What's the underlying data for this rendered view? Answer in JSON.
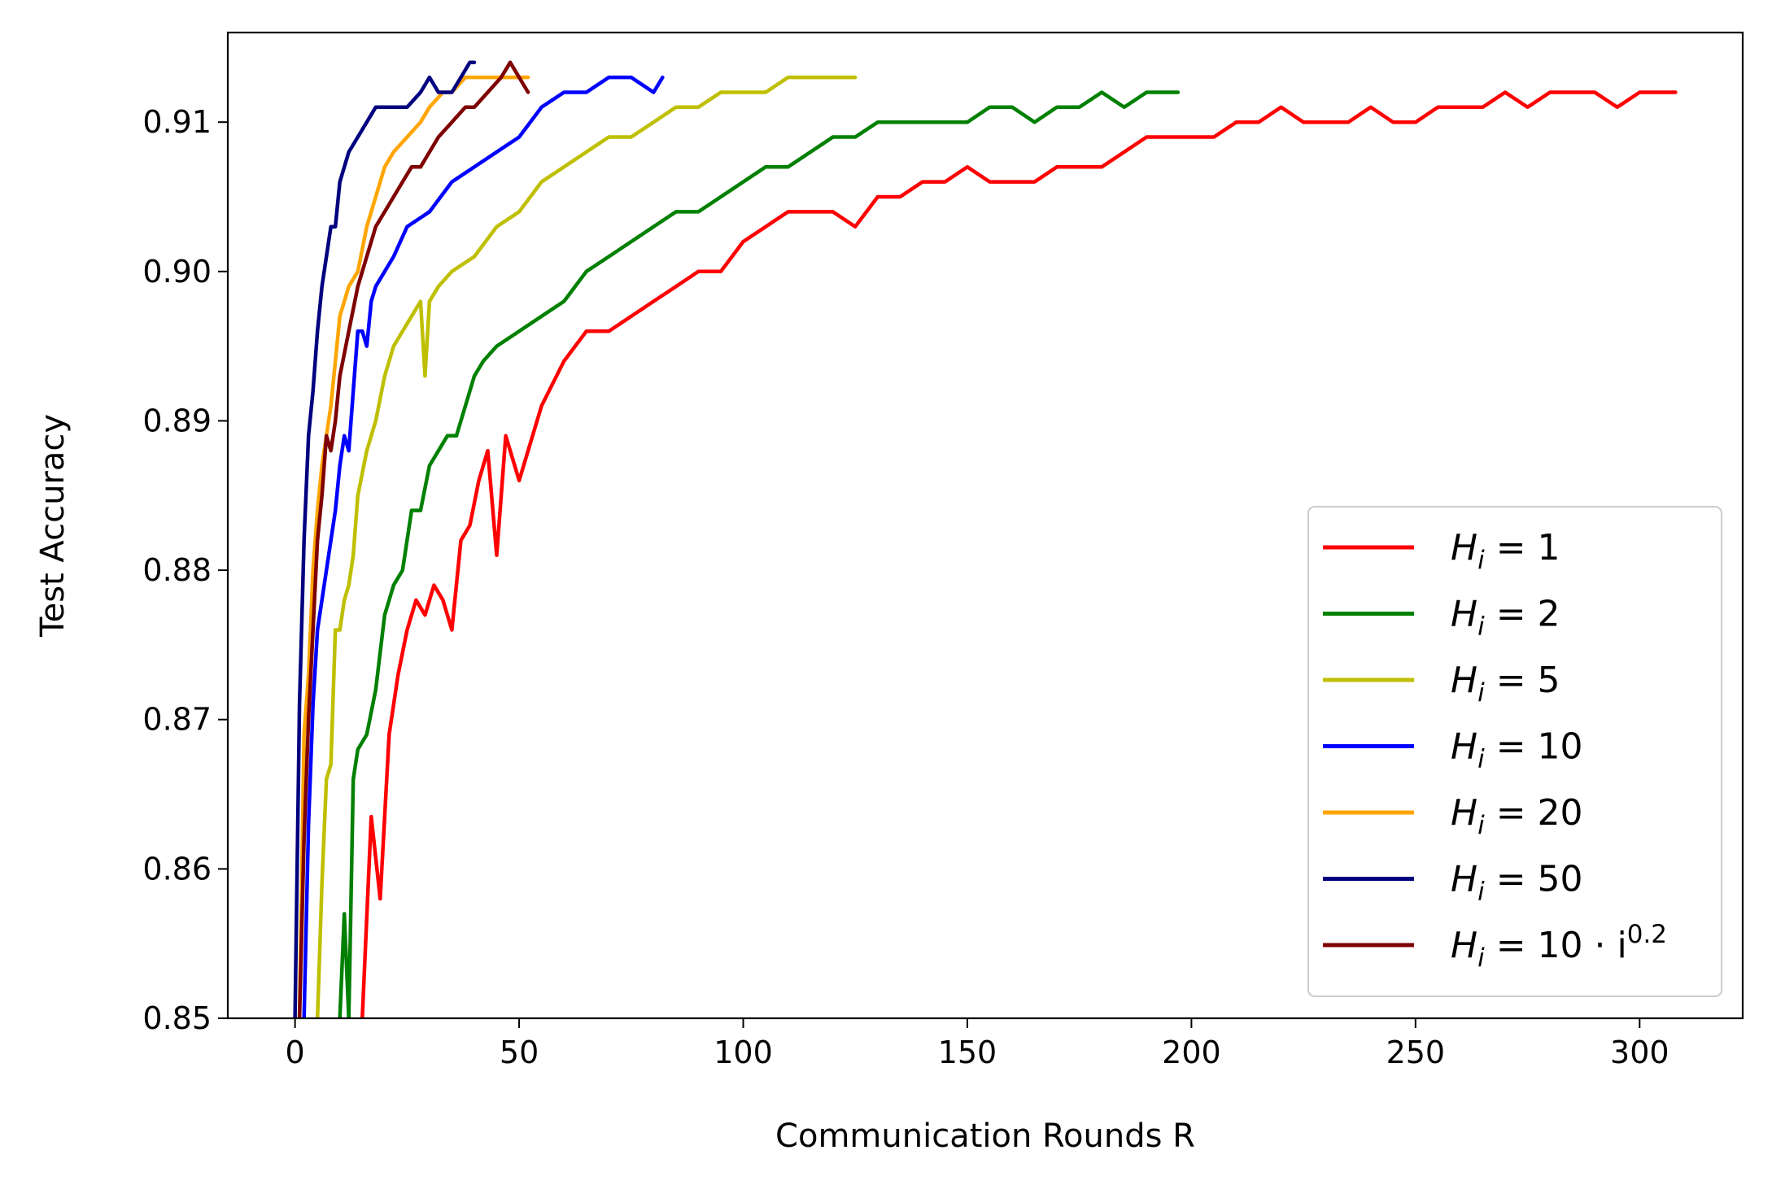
{
  "chart_data": {
    "type": "line",
    "xlabel": "Communication Rounds R",
    "ylabel": "Test Accuracy",
    "xlim": [
      -15,
      323
    ],
    "ylim": [
      0.85,
      0.916
    ],
    "x_ticks": [
      0,
      50,
      100,
      150,
      200,
      250,
      300
    ],
    "x_tick_labels": [
      "0",
      "50",
      "100",
      "150",
      "200",
      "250",
      "300"
    ],
    "y_ticks": [
      0.85,
      0.86,
      0.87,
      0.88,
      0.89,
      0.9,
      0.91
    ],
    "y_tick_labels": [
      "0.85",
      "0.86",
      "0.87",
      "0.88",
      "0.89",
      "0.90",
      "0.91"
    ],
    "grid": false,
    "legend_position": "lower-right",
    "series": [
      {
        "name": "H_i = 1",
        "label_main": "H",
        "label_sub": "i",
        "label_rest": " = 1",
        "label_sup": "",
        "color": "#ff0000",
        "x": [
          15,
          17,
          19,
          21,
          23,
          25,
          27,
          29,
          31,
          33,
          35,
          37,
          39,
          41,
          43,
          45,
          47,
          50,
          55,
          60,
          65,
          70,
          75,
          80,
          85,
          90,
          95,
          100,
          105,
          110,
          115,
          120,
          125,
          130,
          135,
          140,
          145,
          150,
          155,
          160,
          165,
          170,
          175,
          180,
          185,
          190,
          195,
          200,
          205,
          210,
          215,
          220,
          225,
          230,
          235,
          240,
          245,
          250,
          255,
          260,
          265,
          270,
          275,
          280,
          285,
          290,
          295,
          300,
          305,
          308
        ],
        "y": [
          0.85,
          0.8635,
          0.858,
          0.869,
          0.873,
          0.876,
          0.878,
          0.877,
          0.879,
          0.878,
          0.876,
          0.882,
          0.883,
          0.886,
          0.888,
          0.881,
          0.889,
          0.886,
          0.891,
          0.894,
          0.896,
          0.896,
          0.897,
          0.898,
          0.899,
          0.9,
          0.9,
          0.902,
          0.903,
          0.904,
          0.904,
          0.904,
          0.903,
          0.905,
          0.905,
          0.906,
          0.906,
          0.907,
          0.906,
          0.906,
          0.906,
          0.907,
          0.907,
          0.907,
          0.908,
          0.909,
          0.909,
          0.909,
          0.909,
          0.91,
          0.91,
          0.911,
          0.91,
          0.91,
          0.91,
          0.911,
          0.91,
          0.91,
          0.911,
          0.911,
          0.911,
          0.912,
          0.911,
          0.912,
          0.912,
          0.912,
          0.911,
          0.912,
          0.912,
          0.912
        ]
      },
      {
        "name": "H_i = 2",
        "label_main": "H",
        "label_sub": "i",
        "label_rest": " = 2",
        "label_sup": "",
        "color": "#008000",
        "x": [
          10,
          11,
          12,
          13,
          14,
          16,
          18,
          20,
          22,
          24,
          26,
          28,
          30,
          32,
          34,
          36,
          38,
          40,
          42,
          45,
          50,
          55,
          60,
          65,
          70,
          75,
          80,
          85,
          90,
          95,
          100,
          105,
          110,
          115,
          120,
          125,
          130,
          135,
          140,
          145,
          150,
          155,
          160,
          165,
          170,
          175,
          180,
          185,
          190,
          195,
          197
        ],
        "y": [
          0.85,
          0.857,
          0.85,
          0.866,
          0.868,
          0.869,
          0.872,
          0.877,
          0.879,
          0.88,
          0.884,
          0.884,
          0.887,
          0.888,
          0.889,
          0.889,
          0.891,
          0.893,
          0.894,
          0.895,
          0.896,
          0.897,
          0.898,
          0.9,
          0.901,
          0.902,
          0.903,
          0.904,
          0.904,
          0.905,
          0.906,
          0.907,
          0.907,
          0.908,
          0.909,
          0.909,
          0.91,
          0.91,
          0.91,
          0.91,
          0.91,
          0.911,
          0.911,
          0.91,
          0.911,
          0.911,
          0.912,
          0.911,
          0.912,
          0.912,
          0.912
        ]
      },
      {
        "name": "H_i = 5",
        "label_main": "H",
        "label_sub": "i",
        "label_rest": " = 5",
        "label_sup": "",
        "color": "#bfbf00",
        "x": [
          5,
          6,
          7,
          8,
          9,
          10,
          11,
          12,
          13,
          14,
          16,
          18,
          20,
          22,
          24,
          26,
          28,
          29,
          30,
          32,
          35,
          40,
          45,
          50,
          55,
          60,
          65,
          70,
          75,
          80,
          85,
          90,
          95,
          100,
          105,
          110,
          115,
          120,
          125
        ],
        "y": [
          0.85,
          0.859,
          0.866,
          0.867,
          0.876,
          0.876,
          0.878,
          0.879,
          0.881,
          0.885,
          0.888,
          0.89,
          0.893,
          0.895,
          0.896,
          0.897,
          0.898,
          0.893,
          0.898,
          0.899,
          0.9,
          0.901,
          0.903,
          0.904,
          0.906,
          0.907,
          0.908,
          0.909,
          0.909,
          0.91,
          0.911,
          0.911,
          0.912,
          0.912,
          0.912,
          0.913,
          0.913,
          0.913,
          0.913
        ]
      },
      {
        "name": "H_i = 10",
        "label_main": "H",
        "label_sub": "i",
        "label_rest": " = 10",
        "label_sup": "",
        "color": "#0000ff",
        "x": [
          2,
          3,
          4,
          5,
          6,
          7,
          8,
          9,
          10,
          11,
          12,
          13,
          14,
          15,
          16,
          17,
          18,
          20,
          22,
          25,
          30,
          35,
          40,
          45,
          50,
          55,
          60,
          65,
          70,
          75,
          80,
          82
        ],
        "y": [
          0.85,
          0.863,
          0.871,
          0.876,
          0.878,
          0.88,
          0.882,
          0.884,
          0.887,
          0.889,
          0.888,
          0.892,
          0.896,
          0.896,
          0.895,
          0.898,
          0.899,
          0.9,
          0.901,
          0.903,
          0.904,
          0.906,
          0.907,
          0.908,
          0.909,
          0.911,
          0.912,
          0.912,
          0.913,
          0.913,
          0.912,
          0.913
        ]
      },
      {
        "name": "H_i = 20",
        "label_main": "H",
        "label_sub": "i",
        "label_rest": " = 20",
        "label_sup": "",
        "color": "#ffa500",
        "x": [
          1,
          2,
          3,
          4,
          5,
          6,
          7,
          8,
          9,
          10,
          12,
          14,
          16,
          18,
          20,
          22,
          25,
          28,
          30,
          33,
          35,
          38,
          40,
          43,
          45,
          48,
          50,
          52
        ],
        "y": [
          0.85,
          0.869,
          0.873,
          0.88,
          0.884,
          0.887,
          0.889,
          0.891,
          0.894,
          0.897,
          0.899,
          0.9,
          0.903,
          0.905,
          0.907,
          0.908,
          0.909,
          0.91,
          0.911,
          0.912,
          0.912,
          0.913,
          0.913,
          0.913,
          0.913,
          0.913,
          0.913,
          0.913
        ]
      },
      {
        "name": "H_i = 50",
        "label_main": "H",
        "label_sub": "i",
        "label_rest": " = 50",
        "label_sup": "",
        "color": "#00007f",
        "x": [
          0,
          1,
          2,
          3,
          4,
          5,
          6,
          7,
          8,
          9,
          10,
          12,
          14,
          16,
          18,
          20,
          22,
          25,
          28,
          30,
          32,
          35,
          37,
          39,
          40
        ],
        "y": [
          0.85,
          0.871,
          0.882,
          0.889,
          0.892,
          0.896,
          0.899,
          0.901,
          0.903,
          0.903,
          0.906,
          0.908,
          0.909,
          0.91,
          0.911,
          0.911,
          0.911,
          0.911,
          0.912,
          0.913,
          0.912,
          0.912,
          0.913,
          0.914,
          0.914
        ]
      },
      {
        "name": "H_i = 10 · i^0.2",
        "label_main": "H",
        "label_sub": "i",
        "label_rest": " = 10 · i",
        "label_sup": "0.2",
        "color": "#7f0000",
        "x": [
          1,
          2,
          3,
          4,
          5,
          6,
          7,
          8,
          9,
          10,
          12,
          14,
          15,
          16,
          18,
          20,
          22,
          24,
          26,
          28,
          30,
          32,
          35,
          38,
          40,
          43,
          46,
          48,
          50,
          52
        ],
        "y": [
          0.85,
          0.862,
          0.87,
          0.876,
          0.882,
          0.885,
          0.889,
          0.888,
          0.89,
          0.893,
          0.896,
          0.899,
          0.9,
          0.901,
          0.903,
          0.904,
          0.905,
          0.906,
          0.907,
          0.907,
          0.908,
          0.909,
          0.91,
          0.911,
          0.911,
          0.912,
          0.913,
          0.914,
          0.913,
          0.912
        ]
      }
    ]
  }
}
